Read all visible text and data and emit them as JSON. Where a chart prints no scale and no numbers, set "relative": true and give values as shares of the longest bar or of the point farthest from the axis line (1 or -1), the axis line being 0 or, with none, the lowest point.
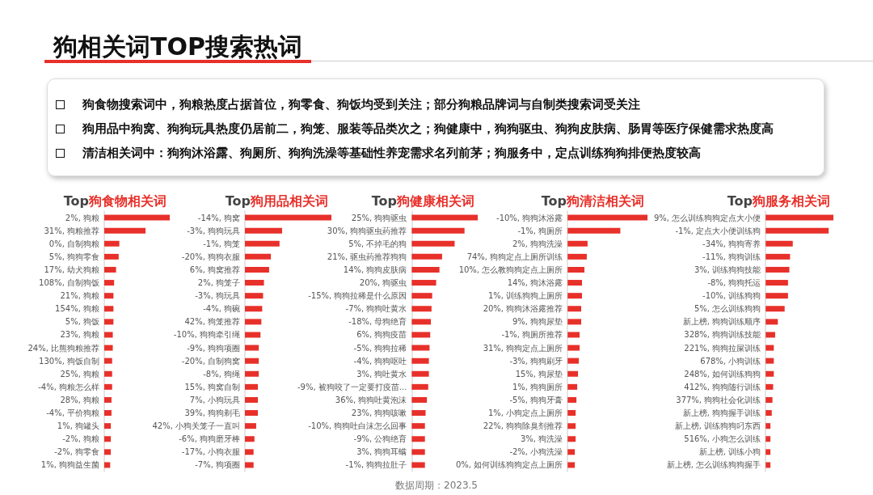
{
  "chart_data": [
    {
      "type": "other",
      "title": "狗相关词TOP搜索热词",
      "annotations": [
        "狗食物搜索词中，狗粮热度占据首位，狗零食、狗饭均受到关注；部分狗粮品牌词与自制类搜索词受关注",
        "狗用品中狗窝、狗狗玩具热度仍居前二，狗笼、服装等品类次之；狗健康中，狗狗驱虫、狗狗皮肤病、肠胃等医疗保健需求热度高",
        "清洁相关词中：狗狗沐浴露、狗厕所、狗狗洗澡等基础性养宠需求名列前茅；狗服务中，定点训练狗狗排便热度较高",
        "数据周期：2023.5"
      ]
    },
    {
      "type": "bar",
      "orientation": "horizontal",
      "relative": true,
      "title": "Top狗食物相关词",
      "color": "#e8302a",
      "categories": [
        "2%, 狗粮",
        "31%, 狗粮推荐",
        "0%, 自制狗粮",
        "5%, 狗狗零食",
        "17%, 幼犬狗粮",
        "108%, 自制狗饭",
        "21%, 狗粮",
        "154%, 狗粮",
        "5%, 狗饭",
        "23%, 狗粮",
        "24%, 比熊狗粮推荐",
        "130%, 狗饭自制",
        "25%, 狗粮",
        "-4%, 狗粮怎么样",
        "28%, 狗粮",
        "-4%, 平价狗粮",
        "1%, 狗罐头",
        "-2%, 狗粮",
        "-2%, 狗零食",
        "1%, 狗狗益生菌"
      ],
      "values": [
        1,
        0.63,
        0.23,
        0.22,
        0.18,
        0.15,
        0.14,
        0.14,
        0.14,
        0.13,
        0.13,
        0.12,
        0.12,
        0.12,
        0.11,
        0.11,
        0.1,
        0.1,
        0.1,
        0.09
      ]
    },
    {
      "type": "bar",
      "orientation": "horizontal",
      "relative": true,
      "title": "Top狗用品相关词",
      "color": "#e8302a",
      "categories": [
        "-14%, 狗窝",
        "-3%, 狗狗玩具",
        "-1%, 狗笼",
        "-20%, 狗狗衣服",
        "6%, 狗窝推荐",
        "2%, 狗笼子",
        "-3%, 狗玩具",
        "-4%, 狗碗",
        "42%, 狗笼推荐",
        "-10%, 狗狗牵引绳",
        "-9%, 狗狗项圈",
        "-20%, 自制狗窝",
        "-8%, 狗绳",
        "15%, 狗窝自制",
        "7%, 小狗玩具",
        "39%, 狗狗剃毛",
        "42%, 小狗关笼子一直叫",
        "-6%, 狗狗磨牙棒",
        "-17%, 小狗衣服",
        "-7%, 狗项圈"
      ],
      "values": [
        1,
        0.43,
        0.4,
        0.3,
        0.28,
        0.22,
        0.21,
        0.2,
        0.19,
        0.18,
        0.16,
        0.16,
        0.16,
        0.15,
        0.15,
        0.15,
        0.13,
        0.11,
        0.1,
        0.1
      ]
    },
    {
      "type": "bar",
      "orientation": "horizontal",
      "relative": true,
      "title": "Top狗健康相关词",
      "color": "#e8302a",
      "categories": [
        "25%, 狗狗驱虫",
        "30%, 狗狗驱虫药推荐",
        "5%, 不掉毛的狗",
        "21%, 驱虫药推荐狗狗",
        "14%, 狗狗皮肤病",
        "20%, 狗驱虫",
        "-15%, 狗狗拉稀是什么原因",
        "-7%, 狗狗吐黄水",
        "-18%, 母狗绝育",
        "6%, 狗狗疫苗",
        "-5%, 狗狗拉稀",
        "-4%, 狗狗呕吐",
        "3%, 狗吐黄水",
        "-9%, 被狗咬了一定要打疫苗...",
        "36%, 狗狗吐黄泡沫",
        "23%, 狗狗咳嗽",
        "-10%, 狗狗吐白沫怎么回事",
        "-9%, 公狗绝育",
        "3%, 狗狗耳螨",
        "-1%, 狗狗拉肚子"
      ],
      "values": [
        1,
        0.8,
        0.65,
        0.46,
        0.42,
        0.37,
        0.31,
        0.3,
        0.29,
        0.28,
        0.27,
        0.26,
        0.26,
        0.25,
        0.23,
        0.21,
        0.2,
        0.2,
        0.2,
        0.2
      ]
    },
    {
      "type": "bar",
      "orientation": "horizontal",
      "relative": true,
      "title": "Top狗清洁相关词",
      "color": "#e8302a",
      "categories": [
        "-10%, 狗狗沐浴露",
        "-1%, 狗厕所",
        "2%, 狗狗洗澡",
        "74%, 狗狗定点上厕所训练",
        "10%, 怎么教狗狗定点上厕所",
        "14%, 狗沐浴露",
        "1%, 训练狗狗上厕所",
        "20%, 狗狗沐浴露推荐",
        "9%, 狗狗尿垫",
        "-1%, 狗厕所推荐",
        "31%, 狗狗定点上厕所",
        "-3%, 狗狗刷牙",
        "15%, 狗尿垫",
        "1%, 狗狗厕所",
        "-5%, 狗狗牙膏",
        "1%, 小狗定点上厕所",
        "22%, 狗狗除臭剂推荐",
        "3%, 狗洗澡",
        "-2%, 小狗洗澡",
        "0%, 如何训练狗狗定点上厕所"
      ],
      "values": [
        1,
        0.66,
        0.25,
        0.24,
        0.21,
        0.18,
        0.18,
        0.17,
        0.17,
        0.15,
        0.15,
        0.14,
        0.13,
        0.12,
        0.11,
        0.1,
        0.1,
        0.1,
        0.09,
        0.09
      ]
    },
    {
      "type": "bar",
      "orientation": "horizontal",
      "relative": true,
      "title": "Top狗服务相关词",
      "color": "#e8302a",
      "categories": [
        "9%, 怎么训练狗狗定点大小便",
        "-1%, 定点大小便训练狗",
        "-34%, 狗狗寄养",
        "-11%, 狗狗训练",
        "3%, 训练狗狗技能",
        "-8%, 狗狗托运",
        "-10%, 训练狗狗",
        "5%, 怎么训练狗狗",
        "新上榜, 狗狗训练顺序",
        "328%, 狗狗训练技能",
        "221%, 狗狗拉屎训练",
        "678%, 小狗训练",
        "248%, 如何训练狗狗",
        "412%, 狗狗随行训练",
        "377%, 狗狗社会化训练",
        "新上榜, 狗狗握手训练",
        "新上榜, 训练狗狗叼东西",
        "516%, 小狗怎么训练",
        "新上榜, 训练小狗",
        "新上榜, 怎么训练狗狗握手"
      ],
      "values": [
        1,
        0.93,
        0.4,
        0.36,
        0.35,
        0.33,
        0.33,
        0.28,
        0.18,
        0.14,
        0.12,
        0.12,
        0.12,
        0.11,
        0.1,
        0.09,
        0.07,
        0.07,
        0.07,
        0.07
      ]
    }
  ]
}
